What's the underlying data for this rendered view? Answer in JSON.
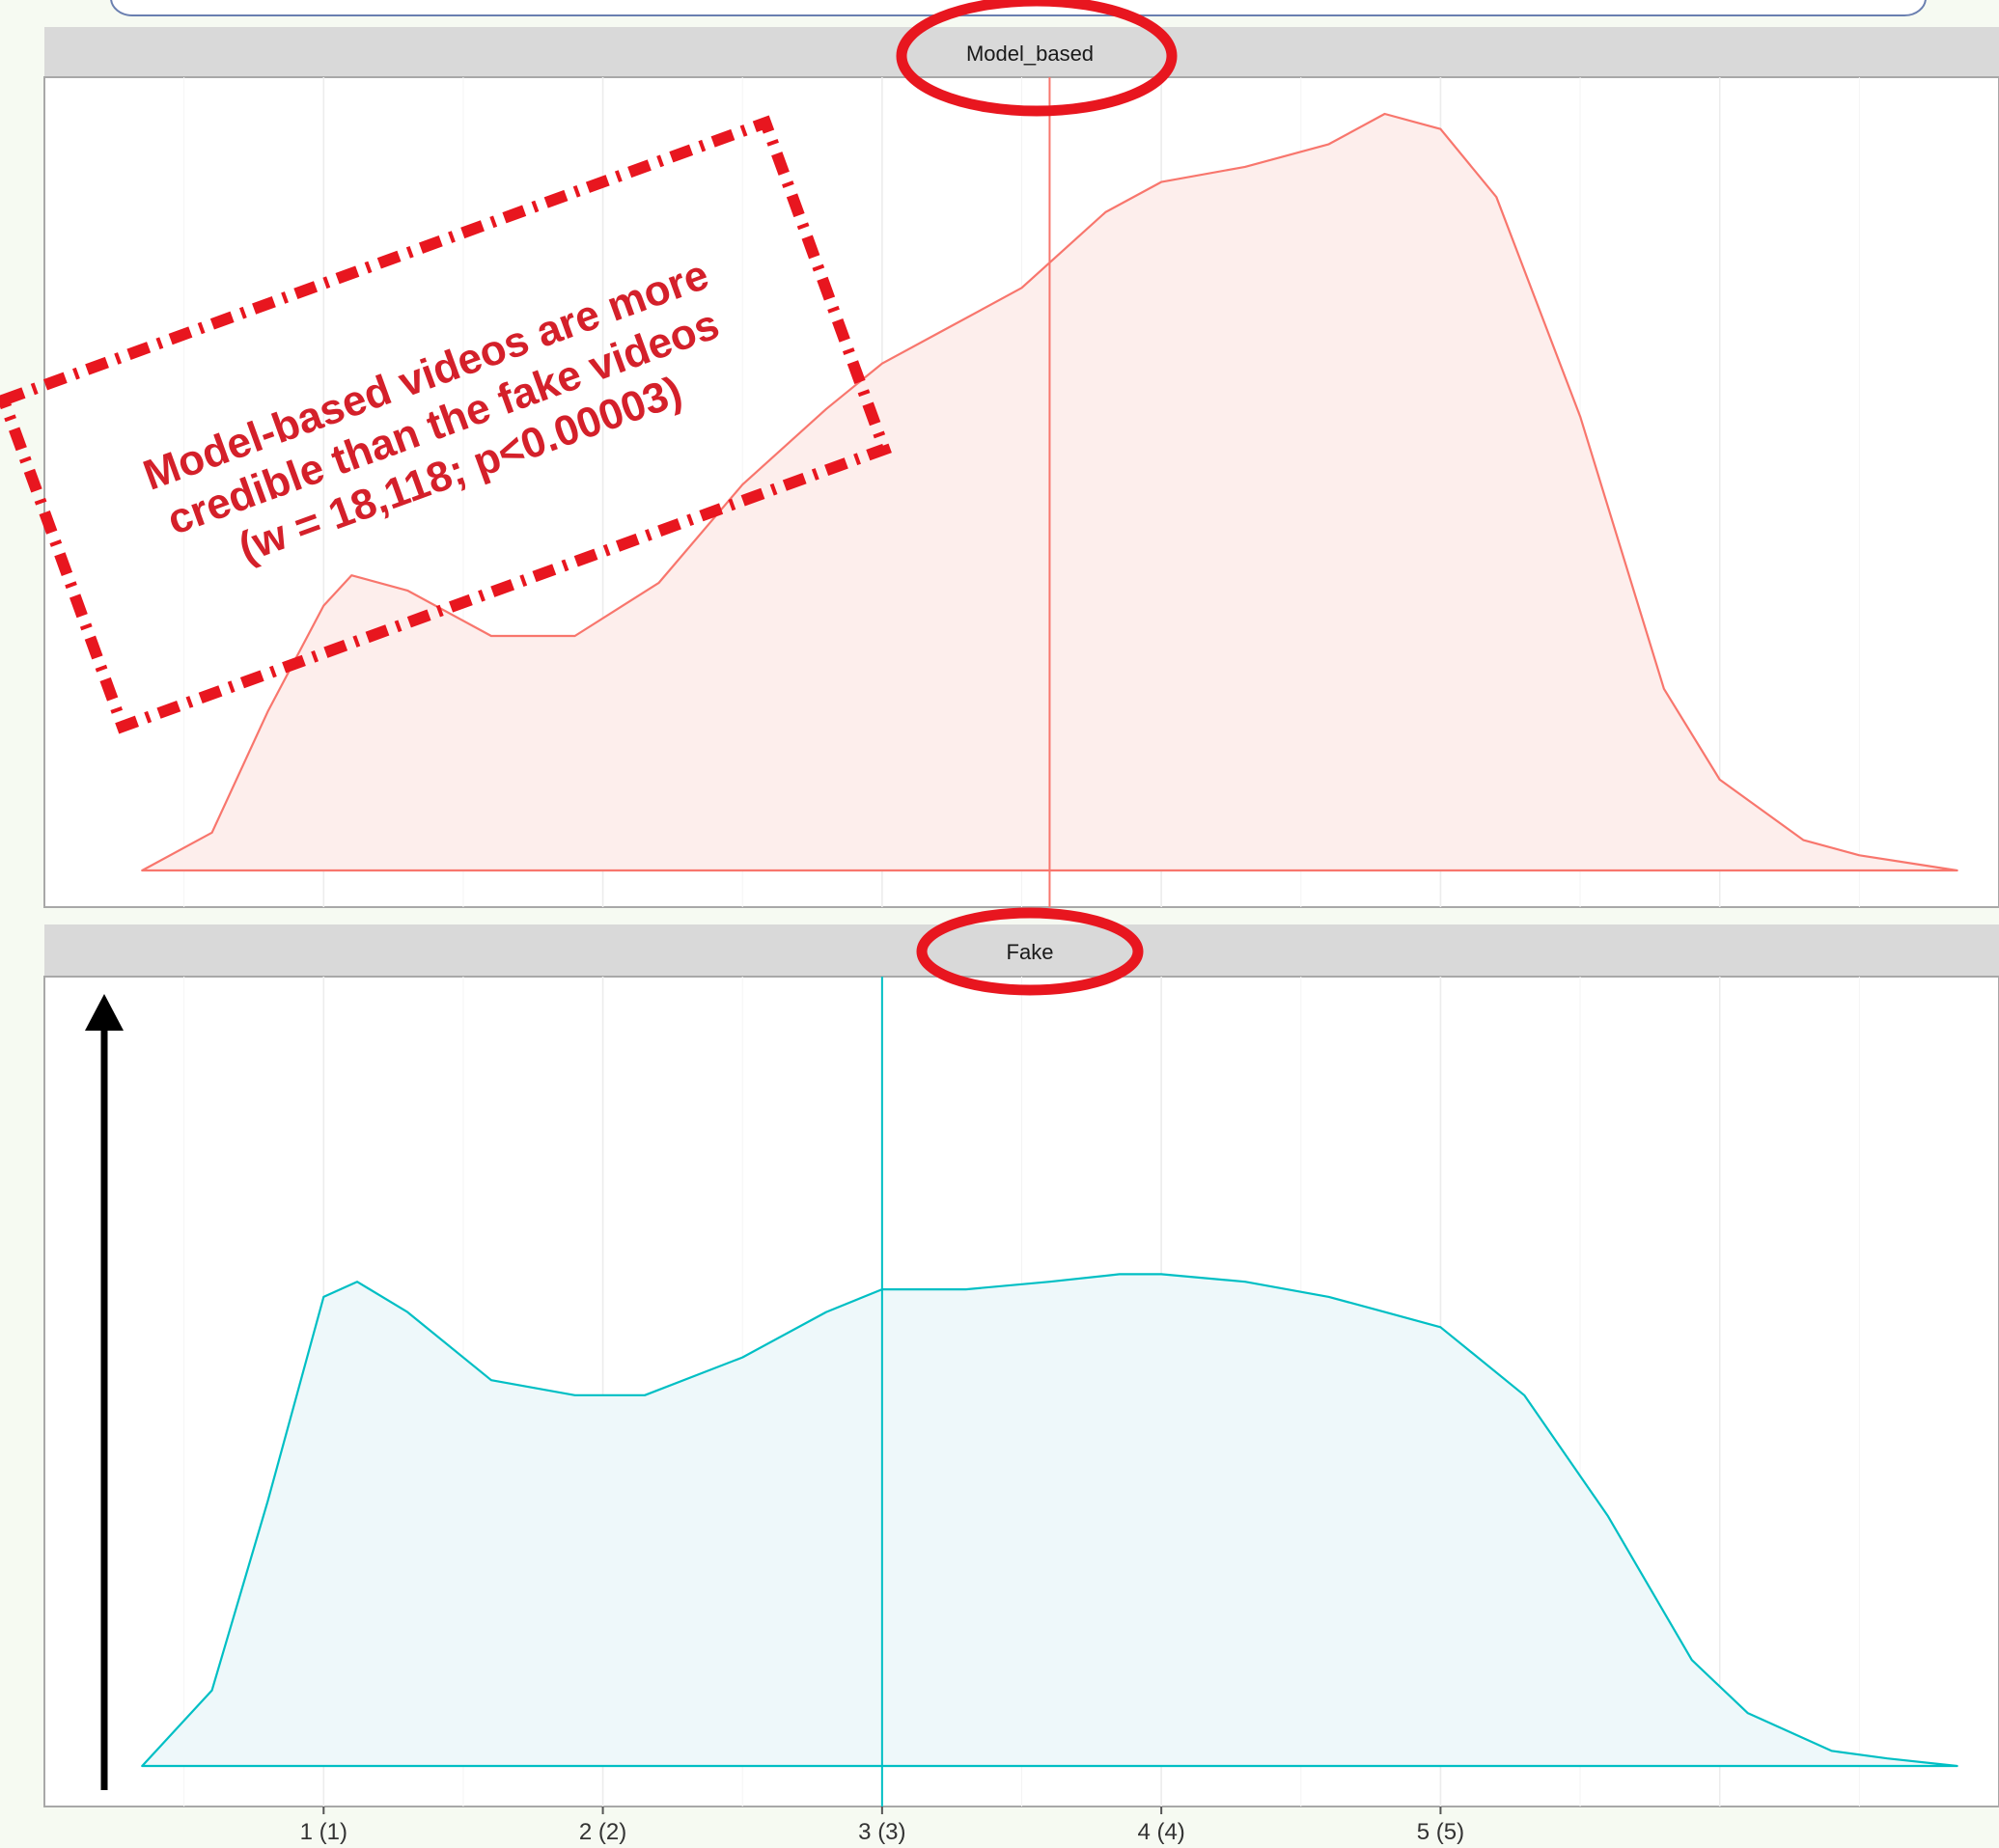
{
  "chart_data": [
    {
      "type": "area",
      "panel": "Model_based",
      "title": "Model_based",
      "xlabel": "",
      "ylabel": "",
      "xlim": [
        0.0,
        7.0
      ],
      "x_tick_labels": [
        "1 (1)",
        "2 (2)",
        "3 (3)",
        "4 (4)",
        "5 (5)"
      ],
      "x_ticks": [
        1,
        2,
        3,
        4,
        5
      ],
      "grid": true,
      "color": "#f8766d",
      "fill": "#fdeeec",
      "series": [
        {
          "x": [
            0.35,
            0.6,
            0.8,
            1.0,
            1.1,
            1.3,
            1.6,
            1.9,
            2.2,
            2.5,
            2.8,
            3.0,
            3.2,
            3.5,
            3.8,
            4.0,
            4.3,
            4.6,
            4.8,
            5.0,
            5.2,
            5.5,
            5.8,
            6.0,
            6.3,
            6.5,
            6.85
          ],
          "y": [
            0.0,
            0.05,
            0.21,
            0.35,
            0.39,
            0.37,
            0.31,
            0.31,
            0.38,
            0.51,
            0.61,
            0.67,
            0.71,
            0.77,
            0.87,
            0.91,
            0.93,
            0.96,
            1.0,
            0.98,
            0.89,
            0.6,
            0.24,
            0.12,
            0.04,
            0.02,
            0.0
          ]
        }
      ],
      "vline_x": 3.6
    },
    {
      "type": "area",
      "panel": "Fake",
      "title": "Fake",
      "xlabel": "",
      "ylabel": "",
      "xlim": [
        0.0,
        7.0
      ],
      "x_tick_labels": [
        "1 (1)",
        "2 (2)",
        "3 (3)",
        "4 (4)",
        "5 (5)"
      ],
      "x_ticks": [
        1,
        2,
        3,
        4,
        5
      ],
      "grid": true,
      "color": "#00bfc4",
      "fill": "#eef8fa",
      "series": [
        {
          "x": [
            0.35,
            0.6,
            0.8,
            1.0,
            1.12,
            1.3,
            1.6,
            1.9,
            2.15,
            2.5,
            2.8,
            3.0,
            3.3,
            3.6,
            3.85,
            4.0,
            4.3,
            4.6,
            4.8,
            5.0,
            5.3,
            5.6,
            5.9,
            6.1,
            6.4,
            6.6,
            6.85
          ],
          "y": [
            0.0,
            0.1,
            0.35,
            0.62,
            0.64,
            0.6,
            0.51,
            0.49,
            0.49,
            0.54,
            0.6,
            0.63,
            0.63,
            0.64,
            0.65,
            0.65,
            0.64,
            0.62,
            0.6,
            0.58,
            0.49,
            0.33,
            0.14,
            0.07,
            0.02,
            0.01,
            0.0
          ]
        }
      ],
      "vline_x": 3.0
    }
  ],
  "annotation": {
    "lines": [
      "Model-based videos are more",
      "credible than the fake videos",
      "(w = 18,118; p<0.00003)"
    ],
    "color": "#d4202a"
  },
  "highlight_color": "#e8161f"
}
